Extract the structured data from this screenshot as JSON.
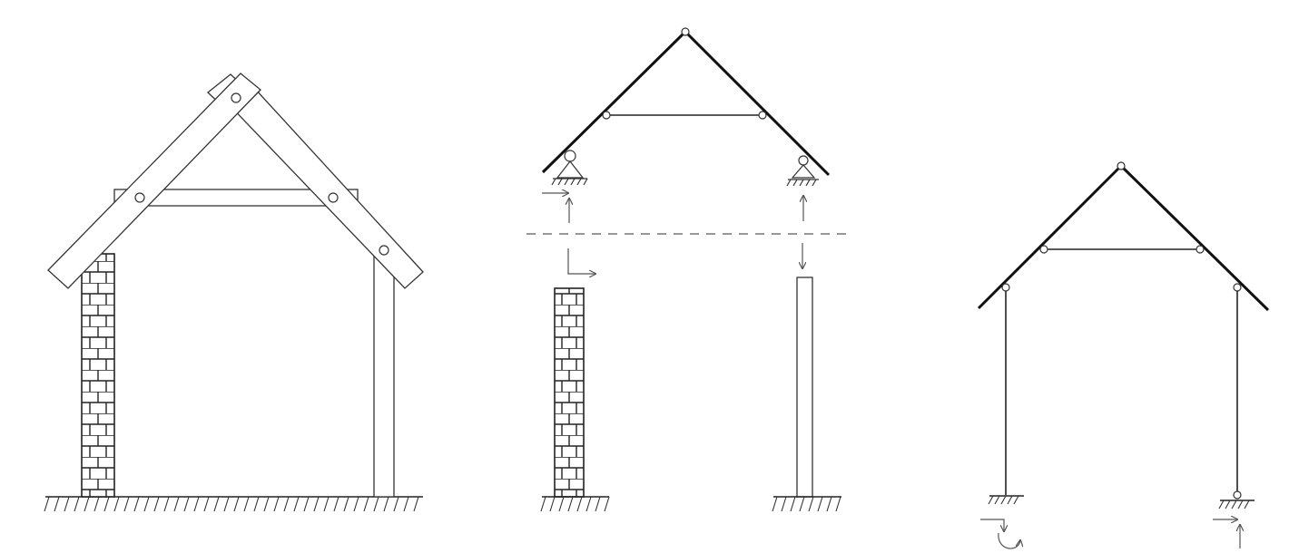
{
  "diagram": {
    "panels": [
      {
        "id": "pictorial-house-frame"
      },
      {
        "id": "free-body-decomposition"
      },
      {
        "id": "structural-model"
      }
    ],
    "colors": {
      "line": "#111111",
      "background": "#ffffff",
      "arrow": "#555555"
    }
  }
}
